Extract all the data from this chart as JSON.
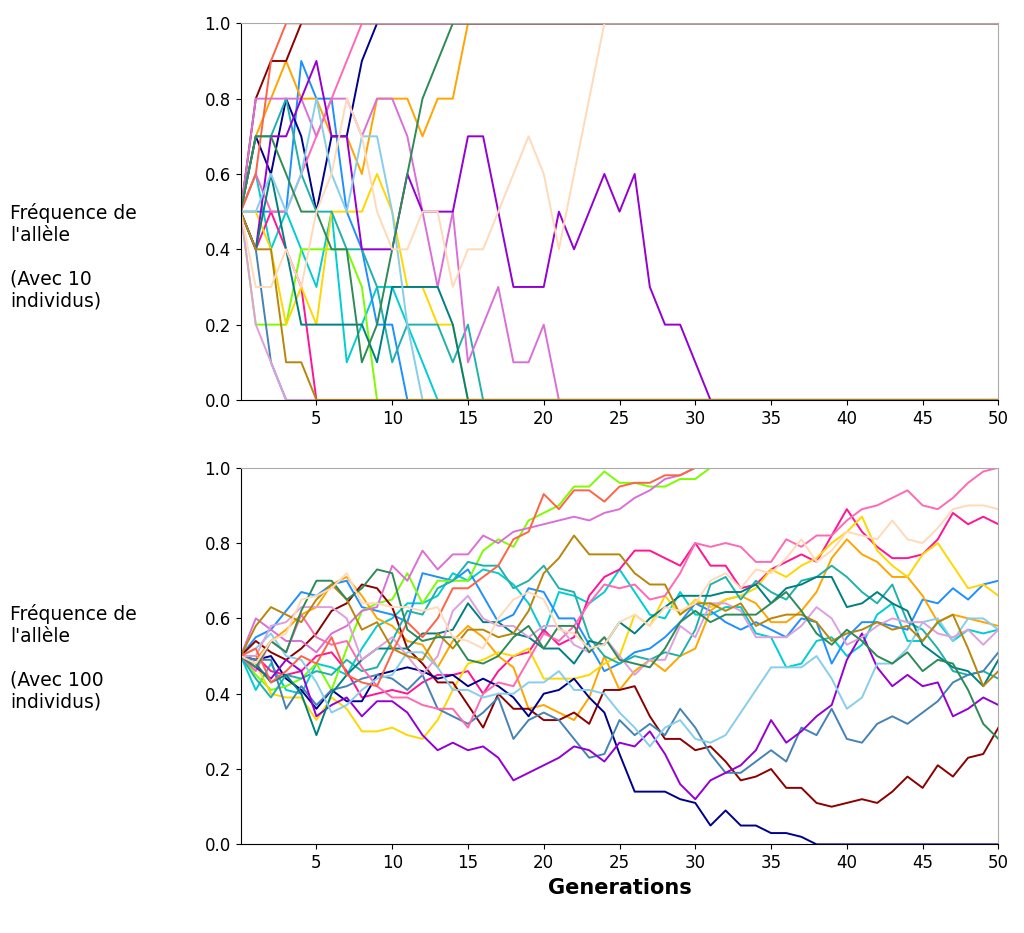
{
  "xlabel": "Generations",
  "ylabel1": "Fréquence de\nl'allèle\n\n(Avec 10\nindividus)",
  "ylabel2": "Fréquence de\nl'allèle\n\n(Avec 100\nindividus)",
  "n_small": 10,
  "n_large": 100,
  "n_lines": 20,
  "generations": 50,
  "seed_small": 7,
  "seed_large": 13,
  "ylim": [
    0.0,
    1.0
  ],
  "xlim": [
    0,
    50
  ],
  "xticks": [
    5,
    10,
    15,
    20,
    25,
    30,
    35,
    40,
    45,
    50
  ],
  "yticks": [
    0.0,
    0.2,
    0.4,
    0.6,
    0.8,
    1.0
  ],
  "colors": [
    "#00CED1",
    "#1E90FF",
    "#7CFC00",
    "#FF1493",
    "#FFA500",
    "#FFD700",
    "#8B0000",
    "#00008B",
    "#20B2AA",
    "#4682B4",
    "#DA70D6",
    "#FF69B4",
    "#9400D3",
    "#008080",
    "#87CEEB",
    "#DDA0DD",
    "#B8860B",
    "#FF6347",
    "#2E8B57",
    "#FFDAB9"
  ],
  "background_color": "#ffffff",
  "fig_width": 10.24,
  "fig_height": 9.33,
  "dpi": 100
}
